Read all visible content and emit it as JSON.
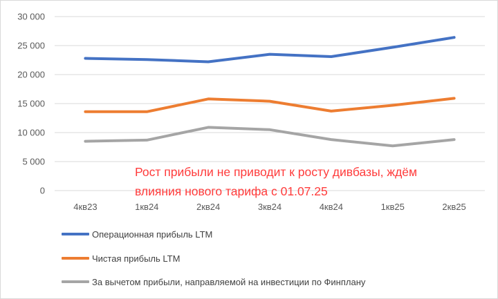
{
  "chart_data": {
    "type": "line",
    "categories": [
      "4кв23",
      "1кв24",
      "2кв24",
      "3кв24",
      "4кв24",
      "1кв25",
      "2кв25"
    ],
    "y_ticks": [
      "0",
      "5 000",
      "10 000",
      "15 000",
      "20 000",
      "25 000",
      "30 000"
    ],
    "ylim": [
      0,
      30000
    ],
    "grid": true,
    "legend_position": "bottom",
    "series": [
      {
        "name": "Операционная прибыль LTM",
        "color": "#4472c4",
        "values": [
          22800,
          22600,
          22200,
          23500,
          23100,
          24700,
          26400
        ]
      },
      {
        "name": "Чистая прибыль LTM",
        "color": "#ed7d31",
        "values": [
          13600,
          13600,
          15800,
          15400,
          13700,
          14700,
          15900
        ]
      },
      {
        "name": "За вычетом прибыли, направляемой на инвестиции  по Финплану",
        "color": "#a5a5a5",
        "values": [
          8500,
          8700,
          10900,
          10500,
          8800,
          7700,
          8800
        ]
      }
    ],
    "annotation": {
      "lines": [
        "Рост прибыли не приводит к росту дивбазы, ждём",
        "влияния нового тарифа с 01.07.25"
      ],
      "color": "#ff3b3b"
    }
  }
}
